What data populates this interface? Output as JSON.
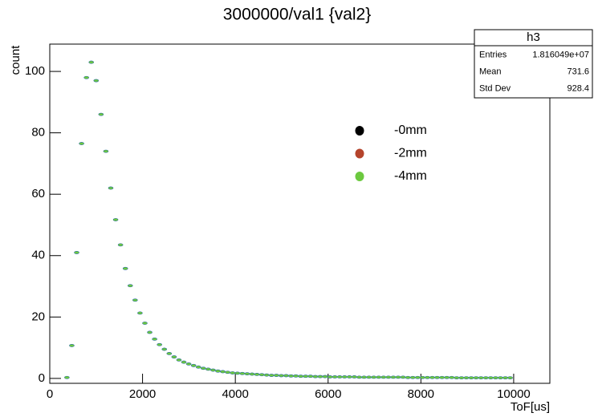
{
  "chart_data": {
    "type": "scatter",
    "title": "3000000/val1 {val2}",
    "x_label": "ToF[us]",
    "y_label": "count",
    "xlim": [
      0,
      10780
    ],
    "ylim": [
      -1.6,
      108.9
    ],
    "xticks": [
      0,
      2000,
      4000,
      6000,
      8000,
      10000
    ],
    "yticks": [
      0,
      20,
      40,
      60,
      80,
      100
    ],
    "legend": "right",
    "x": [
      370,
      475,
      580,
      685,
      790,
      895,
      1000,
      1105,
      1210,
      1315,
      1420,
      1525,
      1630,
      1735,
      1840,
      1945,
      2050,
      2155,
      2260,
      2365,
      2470,
      2575,
      2680,
      2785,
      2890,
      2995,
      3100,
      3205,
      3310,
      3415,
      3520,
      3625,
      3730,
      3835,
      3940,
      4045,
      4150,
      4255,
      4360,
      4465,
      4570,
      4675,
      4780,
      4885,
      4990,
      5095,
      5200,
      5305,
      5410,
      5515,
      5620,
      5725,
      5830,
      5935,
      6040,
      6145,
      6250,
      6355,
      6460,
      6565,
      6670,
      6775,
      6880,
      6985,
      7090,
      7195,
      7300,
      7405,
      7510,
      7615,
      7720,
      7825,
      7930,
      8035,
      8140,
      8245,
      8350,
      8455,
      8560,
      8665,
      8770,
      8875,
      8980,
      9085,
      9190,
      9295,
      9400,
      9505,
      9610,
      9715,
      9820,
      9925
    ],
    "series": [
      {
        "name": "-0mm",
        "color": "#000000",
        "values": [
          0.3,
          10.7,
          41,
          76.5,
          98,
          103,
          97,
          86,
          74,
          62,
          51.7,
          43.5,
          35.8,
          30.2,
          25.5,
          21.3,
          18,
          15,
          12.8,
          11,
          9.5,
          8.1,
          7,
          6,
          5.3,
          4.7,
          4.2,
          3.7,
          3.3,
          3,
          2.7,
          2.4,
          2.2,
          2,
          1.8,
          1.7,
          1.6,
          1.5,
          1.4,
          1.3,
          1.2,
          1.1,
          1,
          1,
          0.9,
          0.9,
          0.8,
          0.8,
          0.7,
          0.7,
          0.7,
          0.6,
          0.6,
          0.6,
          0.5,
          0.5,
          0.5,
          0.5,
          0.5,
          0.5,
          0.4,
          0.4,
          0.4,
          0.4,
          0.4,
          0.4,
          0.4,
          0.4,
          0.4,
          0.4,
          0.3,
          0.3,
          0.3,
          0.3,
          0.3,
          0.3,
          0.3,
          0.3,
          0.3,
          0.3,
          0.2,
          0.2,
          0.2,
          0.2,
          0.2,
          0.2,
          0.2,
          0.2,
          0.2,
          0.2,
          0.2,
          0.2
        ]
      },
      {
        "name": "-2mm",
        "color": "#b5442c",
        "values": [
          0.3,
          10.7,
          41,
          76.5,
          98,
          103,
          97,
          86,
          74,
          62,
          51.7,
          43.5,
          35.8,
          30.2,
          25.5,
          21.3,
          18,
          15,
          12.8,
          11,
          9.5,
          8.1,
          7,
          6,
          5.3,
          4.7,
          4.2,
          3.7,
          3.3,
          3,
          2.7,
          2.4,
          2.2,
          2,
          1.8,
          1.7,
          1.6,
          1.5,
          1.4,
          1.3,
          1.2,
          1.1,
          1,
          1,
          0.9,
          0.9,
          0.8,
          0.8,
          0.7,
          0.7,
          0.7,
          0.6,
          0.6,
          0.6,
          0.5,
          0.5,
          0.5,
          0.5,
          0.5,
          0.5,
          0.4,
          0.4,
          0.4,
          0.4,
          0.4,
          0.4,
          0.4,
          0.4,
          0.4,
          0.4,
          0.3,
          0.3,
          0.3,
          0.3,
          0.3,
          0.3,
          0.3,
          0.3,
          0.3,
          0.3,
          0.2,
          0.2,
          0.2,
          0.2,
          0.2,
          0.2,
          0.2,
          0.2,
          0.2,
          0.2,
          0.2,
          0.2
        ]
      },
      {
        "name": "-4mm",
        "color": "#6cc93f",
        "values": [
          0.3,
          10.7,
          41,
          76.5,
          98,
          103,
          97,
          86,
          74,
          62,
          51.7,
          43.5,
          35.8,
          30.2,
          25.5,
          21.3,
          18,
          15,
          12.8,
          11,
          9.5,
          8.1,
          7,
          6,
          5.3,
          4.7,
          4.2,
          3.7,
          3.3,
          3,
          2.7,
          2.4,
          2.2,
          2,
          1.8,
          1.7,
          1.6,
          1.5,
          1.4,
          1.3,
          1.2,
          1.1,
          1,
          1,
          0.9,
          0.9,
          0.8,
          0.8,
          0.7,
          0.7,
          0.7,
          0.6,
          0.6,
          0.6,
          0.5,
          0.5,
          0.5,
          0.5,
          0.5,
          0.5,
          0.4,
          0.4,
          0.4,
          0.4,
          0.4,
          0.4,
          0.4,
          0.4,
          0.4,
          0.4,
          0.3,
          0.3,
          0.3,
          0.3,
          0.3,
          0.3,
          0.3,
          0.3,
          0.3,
          0.3,
          0.2,
          0.2,
          0.2,
          0.2,
          0.2,
          0.2,
          0.2,
          0.2,
          0.2,
          0.2,
          0.2,
          0.2
        ]
      }
    ],
    "stats": {
      "title": "h3",
      "rows": [
        [
          "Entries",
          "1.816049e+07"
        ],
        [
          "Mean",
          "731.6"
        ],
        [
          "Std Dev",
          "928.4"
        ]
      ]
    }
  }
}
